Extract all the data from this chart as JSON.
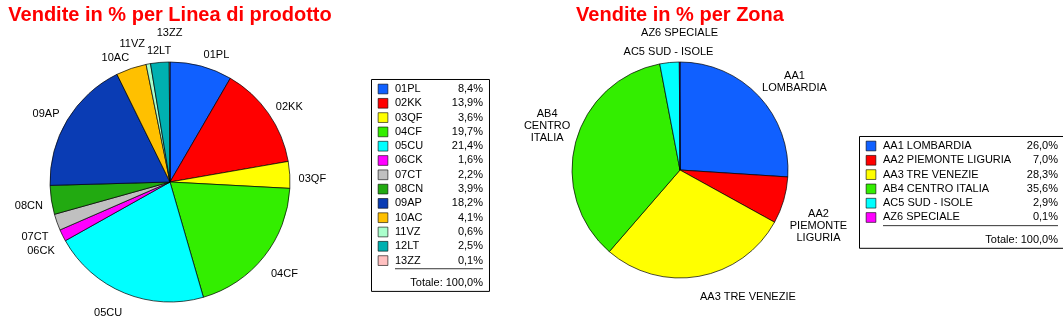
{
  "chart_data": [
    {
      "type": "pie",
      "title": "Vendite in % per Linea di prodotto",
      "legend": "right",
      "categories": [
        "01PL",
        "02KK",
        "03QF",
        "04CF",
        "05CU",
        "06CK",
        "07CT",
        "08CN",
        "09AP",
        "10AC",
        "11VZ",
        "12LT",
        "13ZZ"
      ],
      "values": [
        8.4,
        13.9,
        3.6,
        19.7,
        21.4,
        1.6,
        2.2,
        3.9,
        18.2,
        4.1,
        0.6,
        2.5,
        0.1
      ],
      "colors": [
        "#1060ff",
        "#ff0000",
        "#ffff00",
        "#33ee00",
        "#00ffff",
        "#ff00ff",
        "#c0c0c0",
        "#22aa11",
        "#0a3cb4",
        "#ffc000",
        "#aaffcc",
        "#00b0b0",
        "#ffc0c0"
      ],
      "value_labels": [
        "8,4%",
        "13,9%",
        "3,6%",
        "19,7%",
        "21,4%",
        "1,6%",
        "2,2%",
        "3,9%",
        "18,2%",
        "4,1%",
        "0,6%",
        "2,5%",
        "0,1%"
      ],
      "annotations": [
        "Totale:  100,0%"
      ]
    },
    {
      "type": "pie",
      "title": "Vendite in % per Zona",
      "legend": "right",
      "categories": [
        "AA1 LOMBARDIA",
        "AA2 PIEMONTE LIGURIA",
        "AA3 TRE VENEZIE",
        "AB4 CENTRO ITALIA",
        "AC5 SUD - ISOLE",
        "AZ6 SPECIALE"
      ],
      "values": [
        26.0,
        7.0,
        28.3,
        35.6,
        2.9,
        0.1
      ],
      "colors": [
        "#1060ff",
        "#ff0000",
        "#ffff00",
        "#33ee00",
        "#00ffff",
        "#ff00ff"
      ],
      "value_labels": [
        "26,0%",
        "7,0%",
        "28,3%",
        "35,6%",
        "2,9%",
        "0,1%"
      ],
      "annotations": [
        "Totale:  100,0%"
      ]
    }
  ]
}
